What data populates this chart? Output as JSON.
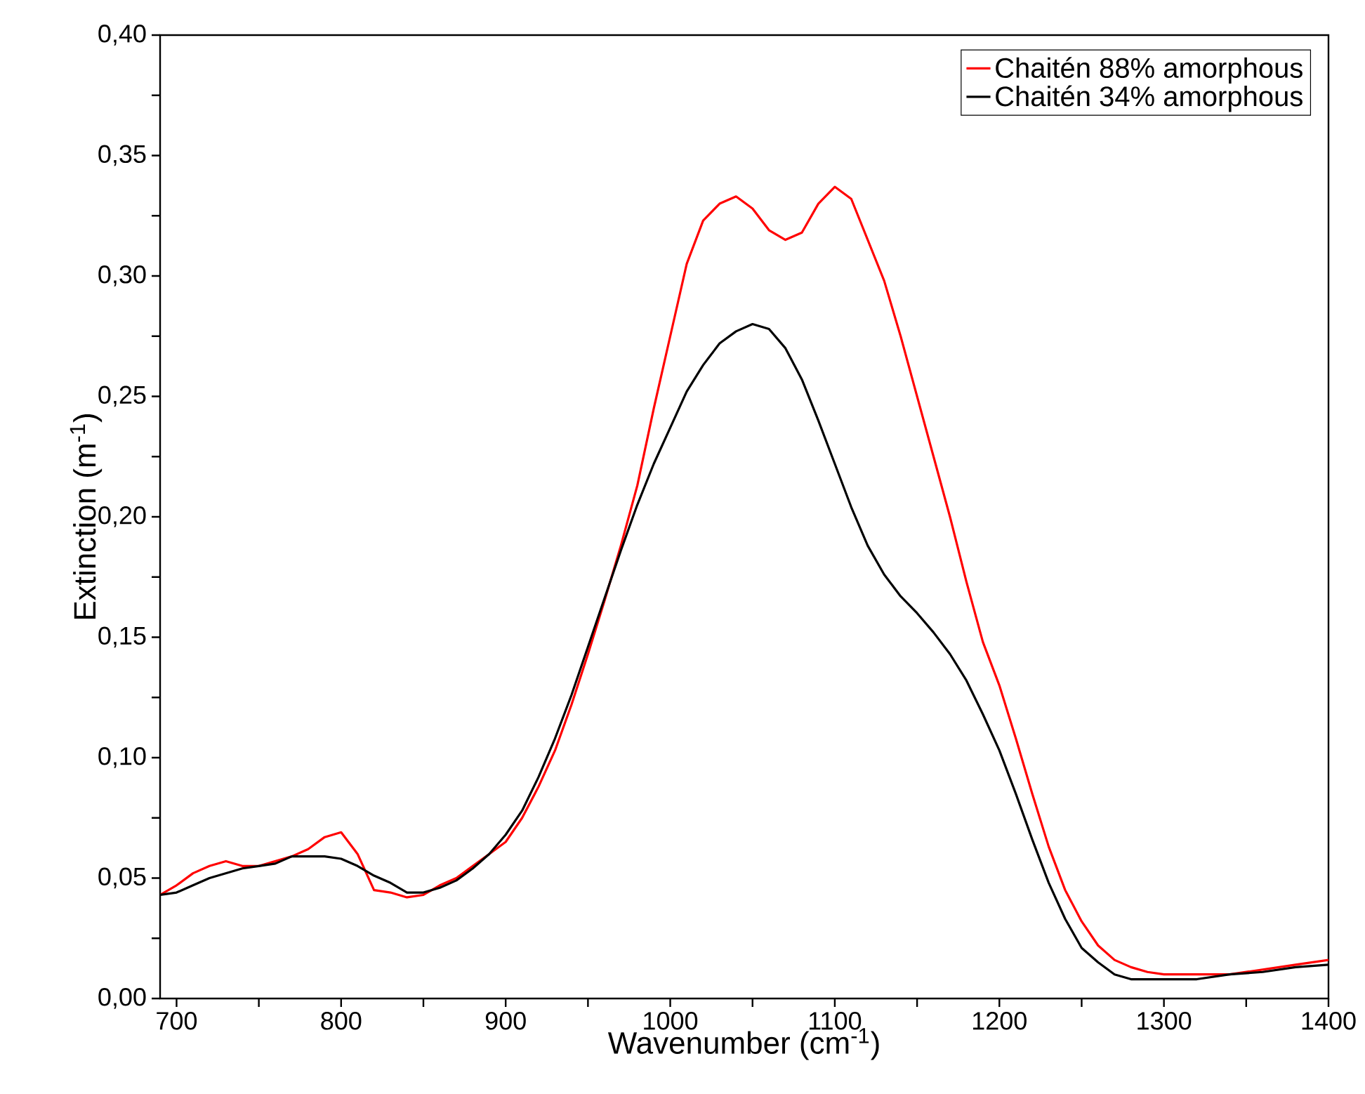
{
  "chart_data": {
    "type": "line",
    "xlabel": "Wavenumber (cm$^{-1}$)",
    "ylabel": "Extinction (m$^{-1}$)",
    "xlim": [
      690,
      1400
    ],
    "ylim": [
      0,
      0.4
    ],
    "xticks": [
      700,
      {
        "value": 750,
        "label": null
      },
      800,
      {
        "value": 850,
        "label": null
      },
      900,
      {
        "value": 950,
        "label": null
      },
      1000,
      {
        "value": 1050,
        "label": null
      },
      1100,
      {
        "value": 1150,
        "label": null
      },
      1200,
      {
        "value": 1250,
        "label": null
      },
      1300,
      {
        "value": 1350,
        "label": null
      },
      1400
    ],
    "yticks": [
      {
        "value": 0,
        "label": "0,00"
      },
      {
        "value": 0.025,
        "label": null
      },
      {
        "value": 0.05,
        "label": "0,05"
      },
      {
        "value": 0.075,
        "label": null
      },
      {
        "value": 0.1,
        "label": "0,10"
      },
      {
        "value": 0.125,
        "label": null
      },
      {
        "value": 0.15,
        "label": "0,15"
      },
      {
        "value": 0.175,
        "label": null
      },
      {
        "value": 0.2,
        "label": "0,20"
      },
      {
        "value": 0.225,
        "label": null
      },
      {
        "value": 0.25,
        "label": "0,25"
      },
      {
        "value": 0.275,
        "label": null
      },
      {
        "value": 0.3,
        "label": "0,30"
      },
      {
        "value": 0.325,
        "label": null
      },
      {
        "value": 0.35,
        "label": "0,35"
      },
      {
        "value": 0.375,
        "label": null
      },
      {
        "value": 0.4,
        "label": "0,40"
      }
    ],
    "grid": false,
    "legend": "top right",
    "marker": "none",
    "line_style": "solid",
    "x": [
      690,
      700,
      710,
      720,
      730,
      740,
      750,
      760,
      770,
      780,
      790,
      800,
      810,
      820,
      830,
      840,
      850,
      860,
      870,
      880,
      890,
      900,
      910,
      920,
      930,
      940,
      950,
      960,
      970,
      980,
      990,
      1000,
      1010,
      1020,
      1030,
      1040,
      1050,
      1060,
      1070,
      1080,
      1090,
      1100,
      1110,
      1120,
      1130,
      1140,
      1150,
      1160,
      1170,
      1180,
      1190,
      1200,
      1210,
      1220,
      1230,
      1240,
      1250,
      1260,
      1270,
      1280,
      1290,
      1300,
      1320,
      1340,
      1360,
      1380,
      1400
    ],
    "series": [
      {
        "name": "Chaitén 88% amorphous",
        "color": "#ff0000",
        "values": [
          0.043,
          0.047,
          0.052,
          0.055,
          0.057,
          0.055,
          0.055,
          0.057,
          0.059,
          0.062,
          0.067,
          0.069,
          0.06,
          0.045,
          0.044,
          0.042,
          0.043,
          0.047,
          0.05,
          0.055,
          0.06,
          0.065,
          0.075,
          0.088,
          0.103,
          0.122,
          0.143,
          0.165,
          0.188,
          0.213,
          0.245,
          0.275,
          0.305,
          0.323,
          0.33,
          0.333,
          0.328,
          0.319,
          0.315,
          0.318,
          0.33,
          0.337,
          0.332,
          0.315,
          0.298,
          0.275,
          0.25,
          0.225,
          0.2,
          0.173,
          0.148,
          0.13,
          0.108,
          0.085,
          0.063,
          0.045,
          0.032,
          0.022,
          0.016,
          0.013,
          0.011,
          0.01,
          0.01,
          0.01,
          0.012,
          0.014,
          0.016
        ]
      },
      {
        "name": "Chaitén 34% amorphous",
        "color": "#000000",
        "values": [
          0.043,
          0.044,
          0.047,
          0.05,
          0.052,
          0.054,
          0.055,
          0.056,
          0.059,
          0.059,
          0.059,
          0.058,
          0.055,
          0.051,
          0.048,
          0.044,
          0.044,
          0.046,
          0.049,
          0.054,
          0.06,
          0.068,
          0.078,
          0.092,
          0.108,
          0.126,
          0.146,
          0.166,
          0.186,
          0.205,
          0.222,
          0.237,
          0.252,
          0.263,
          0.272,
          0.277,
          0.28,
          0.278,
          0.27,
          0.257,
          0.24,
          0.222,
          0.204,
          0.188,
          0.176,
          0.167,
          0.16,
          0.152,
          0.143,
          0.132,
          0.118,
          0.103,
          0.085,
          0.066,
          0.048,
          0.033,
          0.021,
          0.015,
          0.01,
          0.008,
          0.008,
          0.008,
          0.008,
          0.01,
          0.011,
          0.013,
          0.014
        ]
      }
    ]
  }
}
